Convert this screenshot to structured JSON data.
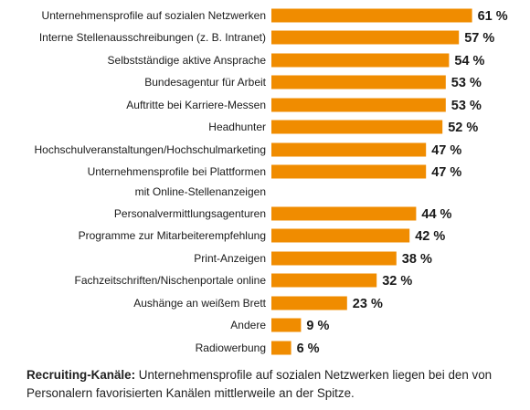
{
  "chart_data": {
    "type": "bar",
    "orientation": "horizontal",
    "categories": [
      [
        "Unternehmensprofile auf sozialen Netzwerken"
      ],
      [
        "Interne Stellenausschreibungen (z. B. Intranet)"
      ],
      [
        "Selbstständige aktive Ansprache"
      ],
      [
        "Bundesagentur für Arbeit"
      ],
      [
        "Auftritte bei Karriere-Messen"
      ],
      [
        "Headhunter"
      ],
      [
        "Hochschulveranstaltungen/Hochschulmarketing"
      ],
      [
        "Unternehmensprofile bei Plattformen",
        "mit Online-Stellenanzeigen"
      ],
      [
        "Personalvermittlungsagenturen"
      ],
      [
        "Programme zur Mitarbeiterempfehlung"
      ],
      [
        "Print-Anzeigen"
      ],
      [
        "Fachzeitschriften/Nischenportale online"
      ],
      [
        "Aushänge an weißem Brett"
      ],
      [
        "Andere"
      ],
      [
        "Radiowerbung"
      ]
    ],
    "values": [
      61,
      57,
      54,
      53,
      53,
      52,
      47,
      47,
      44,
      42,
      38,
      32,
      23,
      9,
      6
    ],
    "value_suffix": " %",
    "bar_color": "#f08c00",
    "grid": false,
    "legend": "none"
  },
  "caption": {
    "bold": "Recruiting-Kanäle:",
    "text": " Unternehmensprofile auf sozialen Netzwerken liegen bei den von Personalern favorisierten Kanälen mittlerweile an der Spitze."
  }
}
